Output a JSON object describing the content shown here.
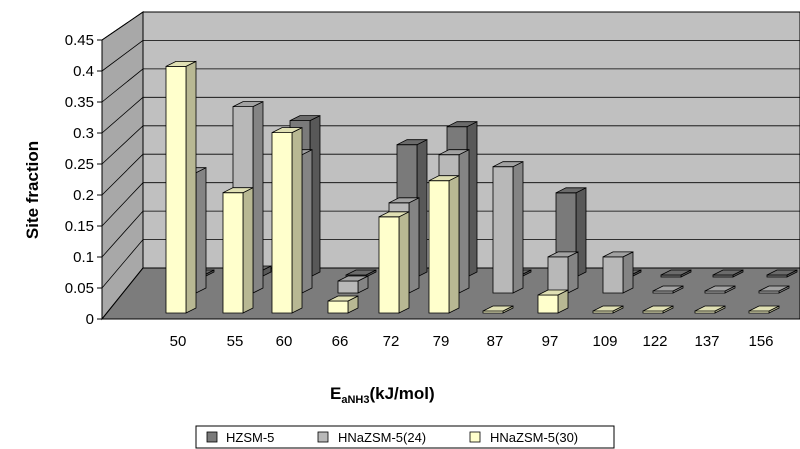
{
  "chart_data": {
    "type": "bar",
    "categories": [
      "50",
      "55",
      "60",
      "66",
      "72",
      "79",
      "87",
      "97",
      "109",
      "122",
      "137",
      "156"
    ],
    "series": [
      {
        "name": "HZSM-5",
        "color": "#7a7a7a",
        "values": [
          0,
          0.01,
          0.26,
          0,
          0.22,
          0.25,
          0,
          0.14,
          0,
          0,
          0,
          0
        ]
      },
      {
        "name": "HNaZSM-5(24)",
        "color": "#b8b8b8",
        "values": [
          0.2,
          0.31,
          0.23,
          0.02,
          0.15,
          0.23,
          0.21,
          0.06,
          0.06,
          0,
          0,
          0
        ]
      },
      {
        "name": "HNaZSM-5(30)",
        "color": "#ffffcc",
        "values": [
          0.41,
          0.2,
          0.3,
          0.02,
          0.16,
          0.22,
          0,
          0.03,
          0,
          0,
          0,
          0
        ]
      }
    ],
    "yticks": [
      "0",
      "0.05",
      "0.1",
      "0.15",
      "0.2",
      "0.25",
      "0.3",
      "0.35",
      "0.4",
      "0.45"
    ],
    "ylim": [
      0,
      0.45
    ],
    "ylabel": "Site fraction",
    "xlabel_main": "E",
    "xlabel_sub": "aNH3",
    "xlabel_unit": "(kJ/mol)",
    "legend_position": "bottom"
  }
}
